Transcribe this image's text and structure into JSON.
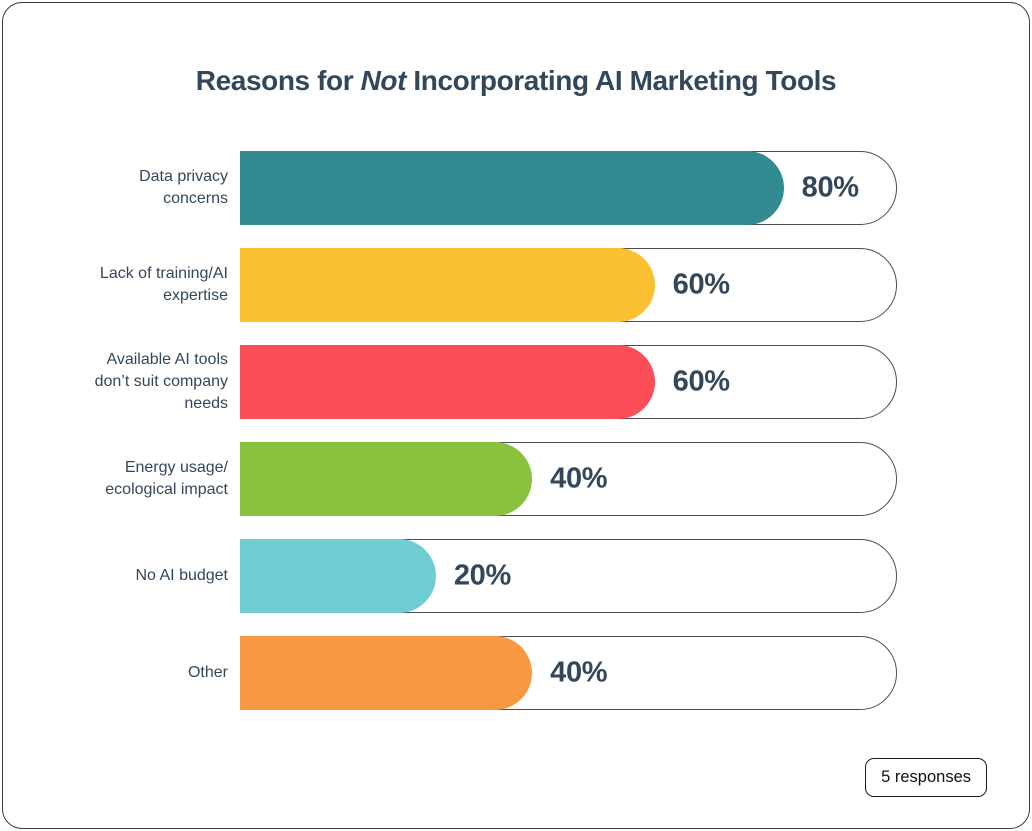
{
  "card": {
    "title": {
      "pre": "Reasons for ",
      "italic": "Not",
      "post": " Incorporating AI Marketing Tools"
    }
  },
  "chart_data": {
    "type": "bar",
    "orientation": "horizontal",
    "title": "Reasons for Not Incorporating AI Marketing Tools",
    "xlabel": "",
    "ylabel": "",
    "unit": "%",
    "xlim": [
      0,
      100
    ],
    "grid": false,
    "legend": false,
    "categories": [
      "Data privacy\nconcerns",
      "Lack of training/AI\nexpertise",
      "Available AI tools\ndon’t suit company\nneeds",
      "Energy usage/\necological impact",
      "No AI budget",
      "Other"
    ],
    "values": [
      80,
      60,
      60,
      40,
      20,
      40
    ],
    "value_labels": [
      "80%",
      "60%",
      "60%",
      "40%",
      "20%",
      "40%"
    ],
    "bar_colors": [
      "#338b92",
      "#fcc133",
      "#fb4e59",
      "#8ac23f",
      "#70cdd4",
      "#f89843"
    ],
    "display_fill_pct": [
      83,
      63.3,
      63.3,
      44.6,
      29.9,
      44.6
    ]
  },
  "footer": {
    "responses_label": "5 responses"
  },
  "colors": {
    "text": "#33475b",
    "track_border": "#454f59",
    "card_border": "#3a3a3a",
    "background": "#ffffff"
  }
}
